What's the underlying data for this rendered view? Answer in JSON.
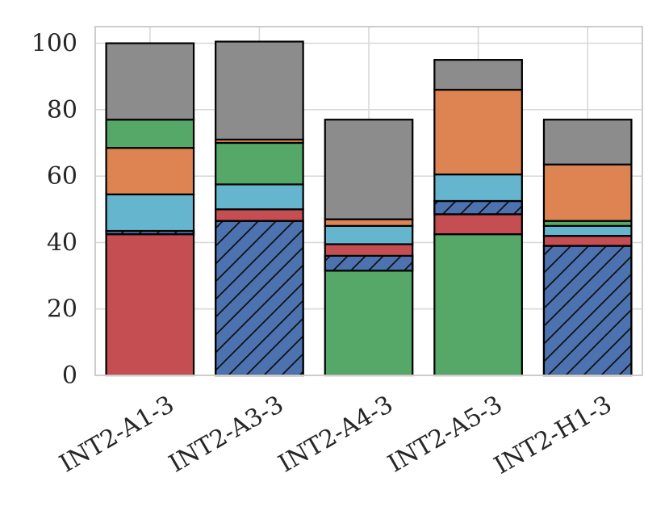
{
  "chart_data": {
    "type": "bar",
    "stacked": true,
    "title": "",
    "xlabel": "",
    "ylabel": "",
    "ylim": [
      0,
      105
    ],
    "yticks": [
      0,
      20,
      40,
      60,
      80,
      100
    ],
    "grid": true,
    "legend": "none",
    "categories": [
      "INT2-A1-3",
      "INT2-A3-3",
      "INT2-A4-3",
      "INT2-A5-3",
      "INT2-H1-3"
    ],
    "series": [
      {
        "name": "red-base",
        "color": "#c44e52",
        "hatch": false,
        "values": [
          42.5,
          0,
          0,
          0,
          0
        ]
      },
      {
        "name": "hatched-blue",
        "color": "#4c72b0",
        "hatch": true,
        "values": [
          1,
          46.5,
          0,
          0,
          39
        ]
      },
      {
        "name": "green-base",
        "color": "#55a868",
        "hatch": false,
        "values": [
          0,
          0,
          31.5,
          42.5,
          0
        ]
      },
      {
        "name": "hatched-blue-2",
        "color": "#4c72b0",
        "hatch": true,
        "values": [
          0,
          0,
          4.5,
          0,
          0
        ]
      },
      {
        "name": "red",
        "color": "#c44e52",
        "hatch": false,
        "values": [
          0,
          3.5,
          3.5,
          6,
          3
        ]
      },
      {
        "name": "hatched-blue-3",
        "color": "#4c72b0",
        "hatch": true,
        "values": [
          0,
          0,
          0,
          4,
          0
        ]
      },
      {
        "name": "cyan",
        "color": "#64b5cd",
        "hatch": false,
        "values": [
          11,
          7.5,
          5.5,
          8,
          3
        ]
      },
      {
        "name": "green",
        "color": "#55a868",
        "hatch": false,
        "values": [
          0,
          12.5,
          0,
          0,
          1.5
        ]
      },
      {
        "name": "orange",
        "color": "#dd8452",
        "hatch": false,
        "values": [
          14,
          1,
          2,
          25.5,
          17
        ]
      },
      {
        "name": "green-top",
        "color": "#55a868",
        "hatch": false,
        "values": [
          8.5,
          0,
          0,
          0,
          0
        ]
      },
      {
        "name": "gray",
        "color": "#8c8c8c",
        "hatch": false,
        "values": [
          23,
          29.5,
          30,
          9,
          13.5
        ]
      }
    ]
  }
}
